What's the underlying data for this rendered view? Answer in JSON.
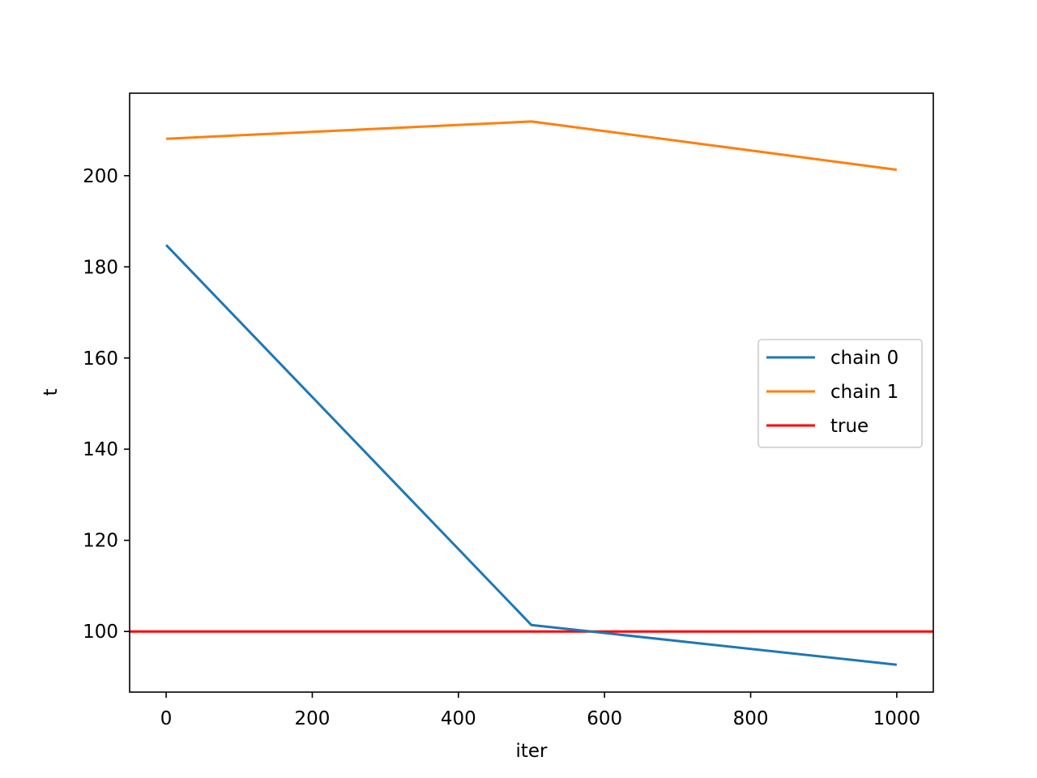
{
  "chart_data": {
    "type": "line",
    "title": "",
    "xlabel": "iter",
    "ylabel": "t",
    "xlim": [
      -50,
      1050
    ],
    "ylim": [
      86.7,
      218.1
    ],
    "x_ticks": [
      0,
      200,
      400,
      600,
      800,
      1000
    ],
    "y_ticks": [
      100,
      120,
      140,
      160,
      180,
      200
    ],
    "grid": false,
    "legend_position": "center-right",
    "series": [
      {
        "name": "chain 0",
        "color": "#1f77b4",
        "x": [
          0,
          500,
          1000
        ],
        "y": [
          184.8,
          101.4,
          92.7
        ]
      },
      {
        "name": "chain 1",
        "color": "#ff7f0e",
        "x": [
          0,
          500,
          1000
        ],
        "y": [
          208.1,
          211.9,
          201.3
        ]
      }
    ],
    "reference_lines": [
      {
        "name": "true",
        "color": "#ff0000",
        "orientation": "horizontal",
        "y": 100
      }
    ]
  }
}
